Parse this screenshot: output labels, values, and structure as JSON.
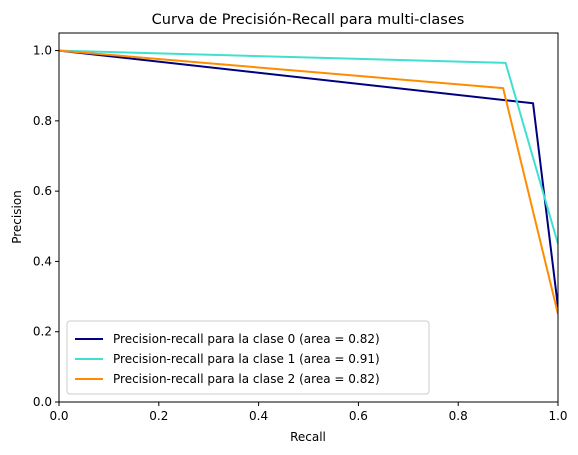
{
  "chart_data": {
    "type": "line",
    "title": "Curva de Precisión-Recall para multi-clases",
    "xlabel": "Recall",
    "ylabel": "Precision",
    "xlim": [
      0.0,
      1.0
    ],
    "ylim": [
      0.0,
      1.05
    ],
    "xticks": [
      "0.0",
      "0.2",
      "0.4",
      "0.6",
      "0.8",
      "1.0"
    ],
    "yticks": [
      "0.0",
      "0.2",
      "0.4",
      "0.6",
      "0.8",
      "1.0"
    ],
    "grid": false,
    "legend_position": "lower-left",
    "series": [
      {
        "name": "Precision-recall para la clase 0 (area = 0.82)",
        "color": "#000080",
        "x": [
          0.0,
          0.95,
          1.0
        ],
        "y": [
          1.0,
          0.85,
          0.27
        ]
      },
      {
        "name": "Precision-recall para la clase 1 (area = 0.91)",
        "color": "#40e0d0",
        "x": [
          0.0,
          0.895,
          1.0
        ],
        "y": [
          1.0,
          0.965,
          0.45
        ]
      },
      {
        "name": "Precision-recall para la clase 2 (area = 0.82)",
        "color": "#ff8c00",
        "x": [
          0.0,
          0.89,
          1.0
        ],
        "y": [
          1.0,
          0.893,
          0.25
        ]
      }
    ]
  }
}
